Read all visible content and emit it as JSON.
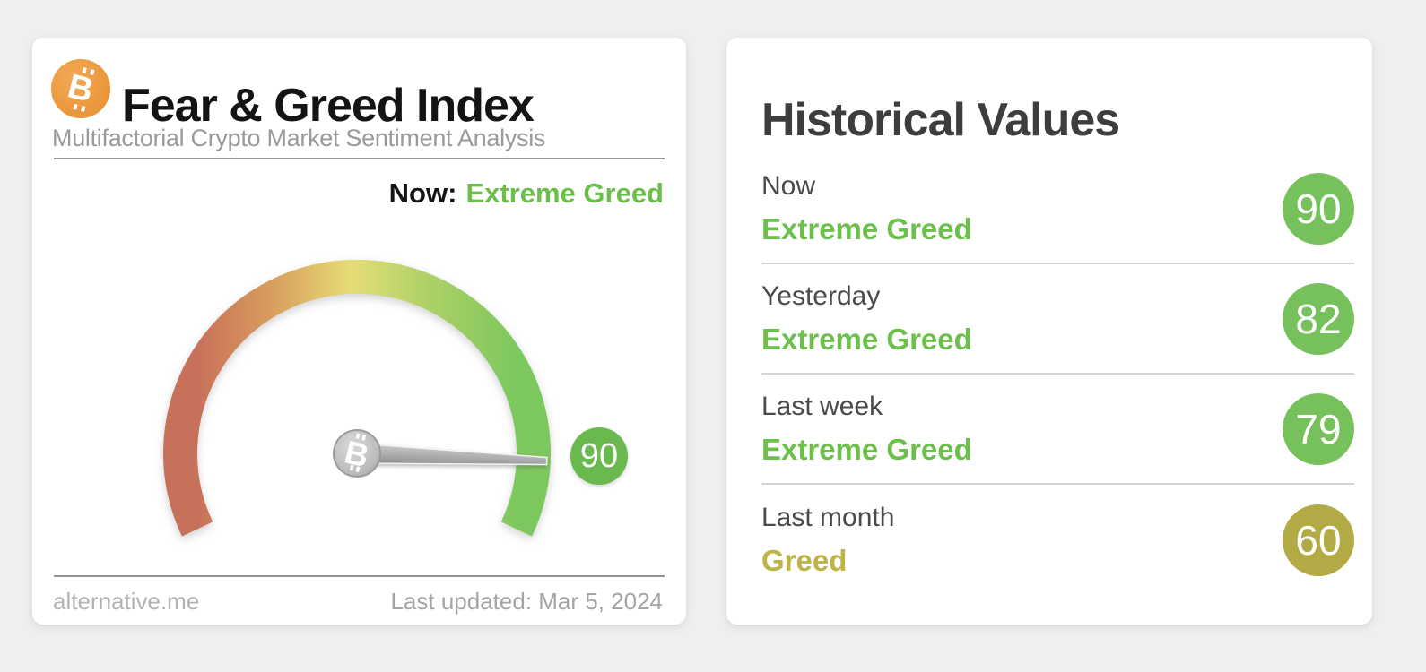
{
  "fear_greed_card": {
    "title": "Fear & Greed Index",
    "subtitle": "Multifactorial Crypto Market Sentiment Analysis",
    "now_prefix": "Now:",
    "now_classification": "Extreme Greed",
    "gauge_value_label": "90",
    "source_link": "alternative.me",
    "last_updated": "Last updated: Mar 5, 2024",
    "logo_icon": "bitcoin-icon",
    "needle_hub_icon": "bitcoin-icon"
  },
  "historical_card": {
    "title": "Historical Values",
    "rows": [
      {
        "label": "Now",
        "classification": "Extreme Greed",
        "value": "90",
        "badge_color": "#77c15c",
        "text_color": "#6cbf4b"
      },
      {
        "label": "Yesterday",
        "classification": "Extreme Greed",
        "value": "82",
        "badge_color": "#77c15c",
        "text_color": "#6cbf4b"
      },
      {
        "label": "Last week",
        "classification": "Extreme Greed",
        "value": "79",
        "badge_color": "#77c15c",
        "text_color": "#6cbf4b"
      },
      {
        "label": "Last month",
        "classification": "Greed",
        "value": "60",
        "badge_color": "#b2aa45",
        "text_color": "#bdb347"
      }
    ]
  },
  "colors": {
    "page_background": "#efeff0",
    "card_background": "#ffffff",
    "accent_green": "#77c15c",
    "greed_olive": "#b2aa45",
    "bitcoin_orange": "#ee9c44",
    "needle_gray": "#a8a8a8"
  },
  "chart_data": {
    "type": "gauge",
    "title": "Fear & Greed Index",
    "value": 90,
    "min": 0,
    "max": 100,
    "classification": "Extreme Greed",
    "arc_sweep_degrees": 230,
    "scale_colors": [
      "#c8715a",
      "#d89a5c",
      "#e6dd77",
      "#aed167",
      "#7cc75e"
    ],
    "historical": [
      {
        "period": "Now",
        "classification": "Extreme Greed",
        "value": 90
      },
      {
        "period": "Yesterday",
        "classification": "Extreme Greed",
        "value": 82
      },
      {
        "period": "Last week",
        "classification": "Extreme Greed",
        "value": 79
      },
      {
        "period": "Last month",
        "classification": "Greed",
        "value": 60
      }
    ]
  }
}
